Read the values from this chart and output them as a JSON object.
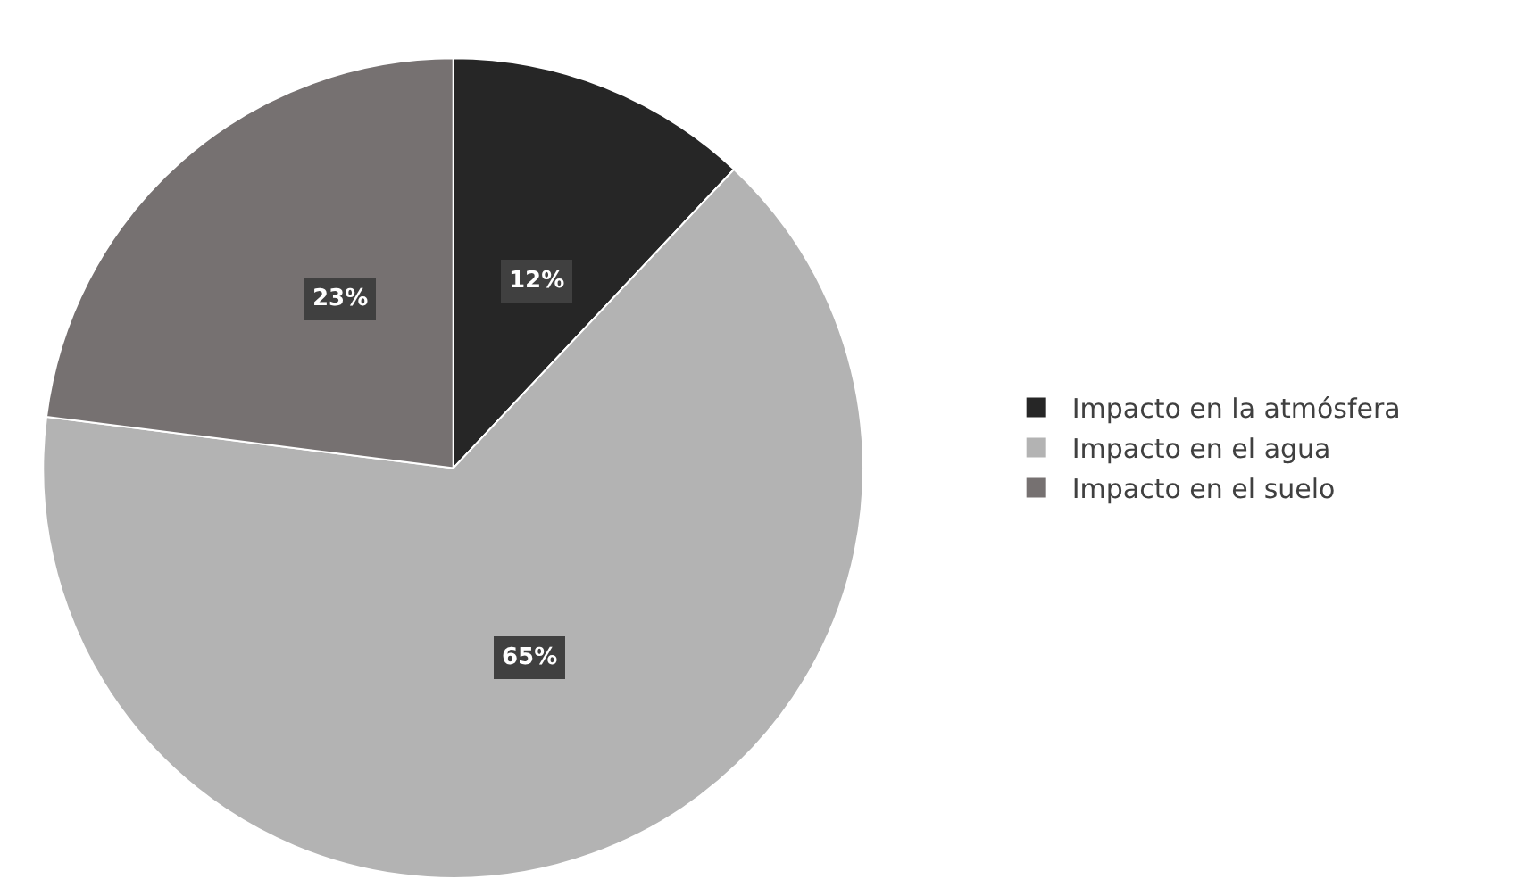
{
  "chart_data": {
    "type": "pie",
    "categories": [
      "Impacto en la atmósfera",
      "Impacto en el agua",
      "Impacto en el suelo"
    ],
    "values": [
      12,
      65,
      23
    ],
    "value_labels": [
      "12%",
      "65%",
      "23%"
    ],
    "colors": [
      "#262626",
      "#b3b3b3",
      "#767171"
    ],
    "legend": "right"
  }
}
